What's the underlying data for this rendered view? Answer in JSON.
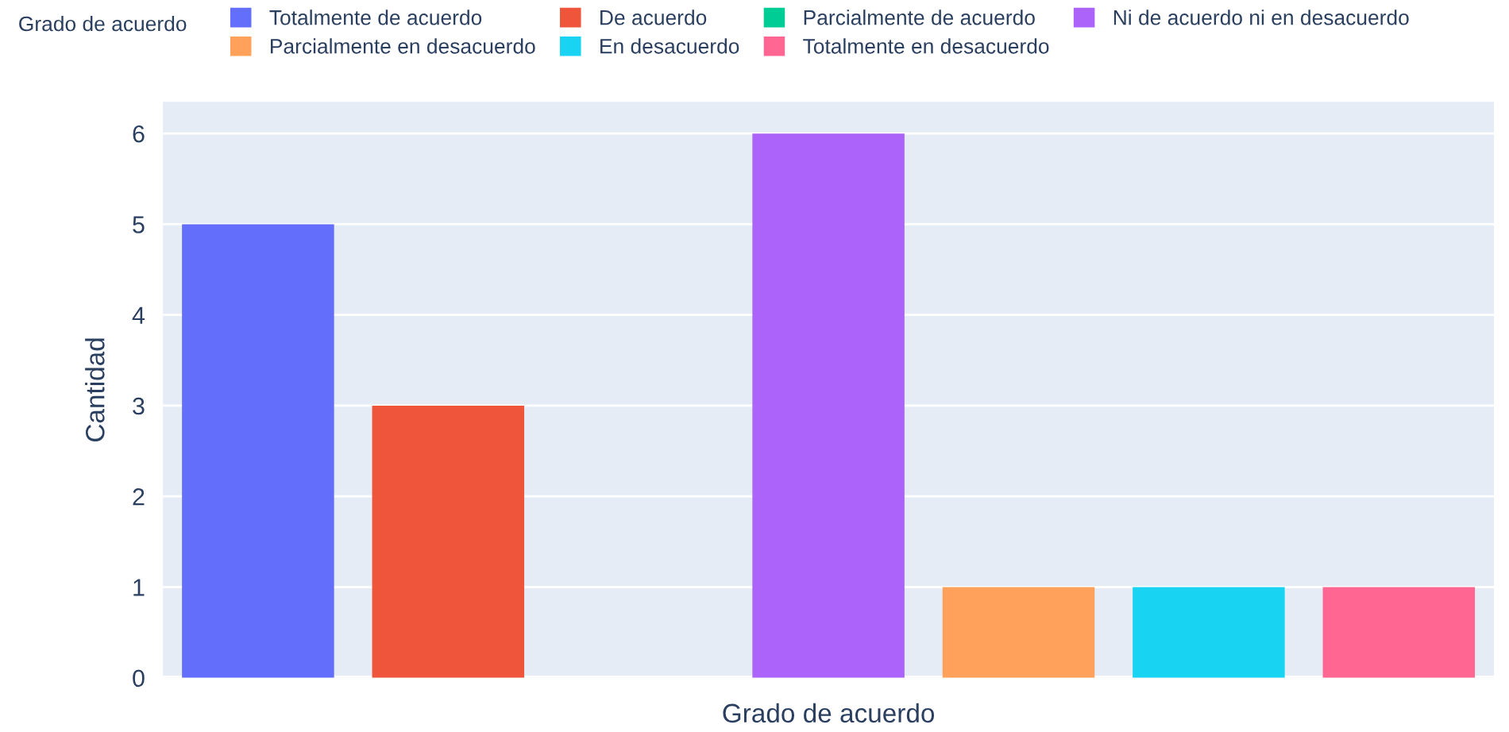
{
  "chart_data": {
    "type": "bar",
    "xlabel": "Grado de acuerdo",
    "ylabel": "Cantidad",
    "legend_title": "Grado de acuerdo",
    "categories": [
      null,
      null,
      null,
      null,
      null,
      null,
      null
    ],
    "series": [
      {
        "name": "Totalmente de acuerdo",
        "color": "#636efa",
        "values": [
          5,
          null,
          null,
          null,
          null,
          null,
          null
        ]
      },
      {
        "name": "De acuerdo",
        "color": "#ef553b",
        "values": [
          null,
          3,
          null,
          null,
          null,
          null,
          null
        ]
      },
      {
        "name": "Parcialmente de acuerdo",
        "color": "#00cc96",
        "values": [
          null,
          null,
          0,
          null,
          null,
          null,
          null
        ]
      },
      {
        "name": "Ni de acuerdo ni en desacuerdo",
        "color": "#ab63fa",
        "values": [
          null,
          null,
          null,
          6,
          null,
          null,
          null
        ]
      },
      {
        "name": "Parcialmente en desacuerdo",
        "color": "#ffa15a",
        "values": [
          null,
          null,
          null,
          null,
          1,
          null,
          null
        ]
      },
      {
        "name": "En desacuerdo",
        "color": "#19d3f3",
        "values": [
          null,
          null,
          null,
          null,
          null,
          1,
          null
        ]
      },
      {
        "name": "Totalmente en desacuerdo",
        "color": "#ff6692",
        "values": [
          null,
          null,
          null,
          null,
          null,
          null,
          1
        ]
      }
    ],
    "ylim": [
      0,
      6.35
    ],
    "yticks": [
      0,
      1,
      2,
      3,
      4,
      5,
      6
    ],
    "grid": "y",
    "legend": "top left"
  }
}
